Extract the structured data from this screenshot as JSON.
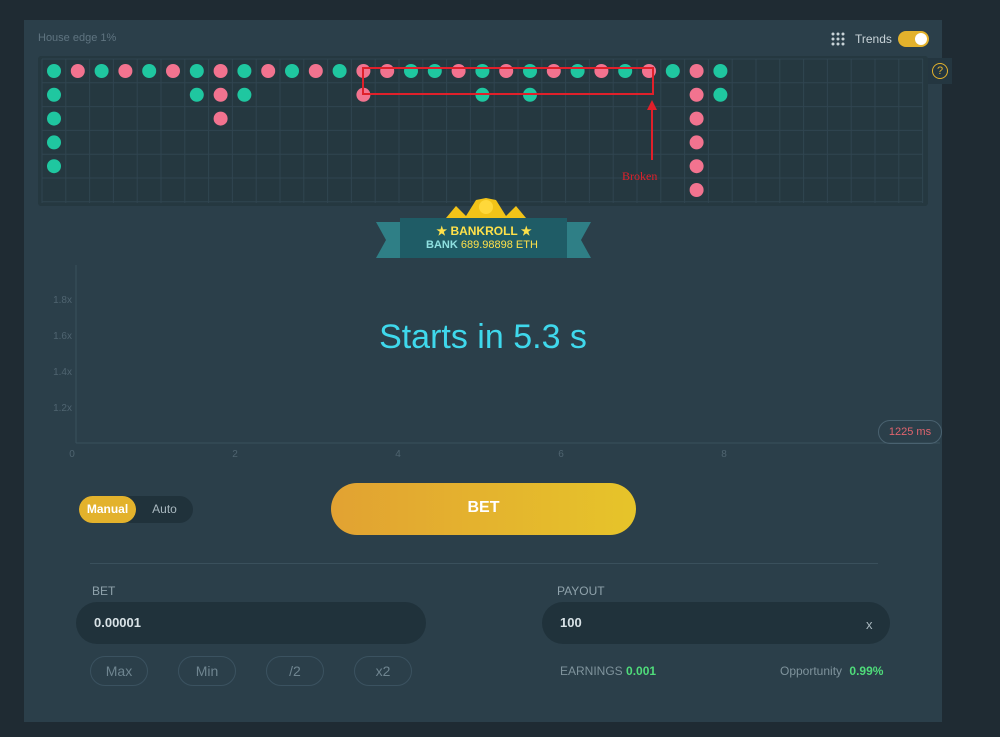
{
  "header": {
    "house_edge": "House edge 1%",
    "trends": "Trends",
    "help": "?"
  },
  "annotation": {
    "label": "Broken"
  },
  "bankroll": {
    "title": "BANKROLL",
    "bank_label": "BANK",
    "bank_value": "689.98898 ETH"
  },
  "graph": {
    "yticks": [
      {
        "value": 1.8,
        "label": "1.8x"
      },
      {
        "value": 1.6,
        "label": "1.6x"
      },
      {
        "value": 1.4,
        "label": "1.4x"
      },
      {
        "value": 1.2,
        "label": "1.2x"
      }
    ],
    "xticks": [
      0,
      2,
      4,
      6,
      8
    ],
    "status": "Starts in 5.3 s",
    "latency": "1225 ms"
  },
  "mode": {
    "options": [
      "Manual",
      "Auto"
    ]
  },
  "bet_button": "BET",
  "bet": {
    "label": "BET",
    "value": "0.00001",
    "actions": [
      "Max",
      "Min",
      "/2",
      "x2"
    ]
  },
  "payout": {
    "label": "PAYOUT",
    "value": "100",
    "suffix": "x"
  },
  "earnings": {
    "label": "EARNINGS",
    "value": "0.001"
  },
  "opportunity": {
    "label": "Opportunity",
    "value": "0.99%"
  }
}
